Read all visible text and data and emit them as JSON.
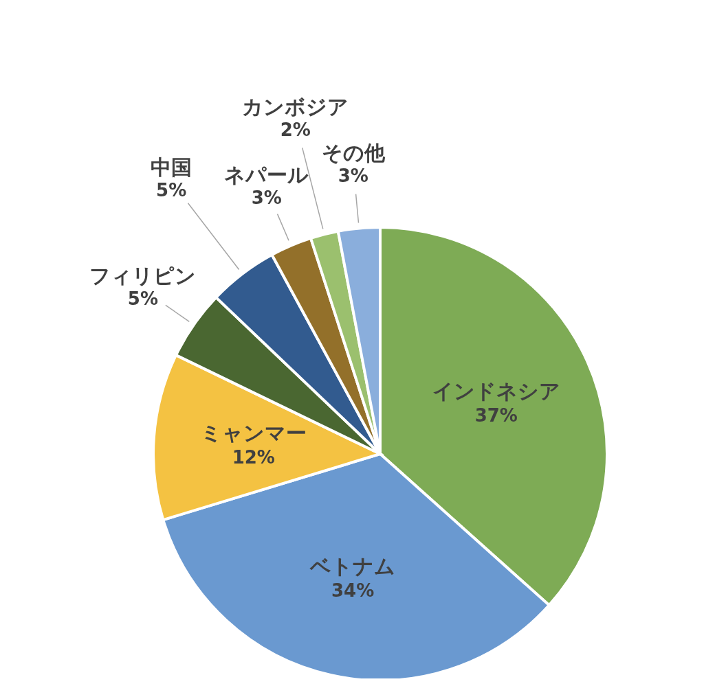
{
  "chart_data": {
    "type": "pie",
    "categories": [
      "インドネシア",
      "ベトナム",
      "ミャンマー",
      "フィリピン",
      "中国",
      "ネパール",
      "カンボジア",
      "その他"
    ],
    "values": [
      37,
      34,
      12,
      5,
      5,
      3,
      2,
      3
    ],
    "colors": [
      "#7eab55",
      "#6a99d0",
      "#f4c242",
      "#4a6731",
      "#325b8f",
      "#93702a",
      "#9bc06e",
      "#8aaedc"
    ],
    "value_labels": [
      "37%",
      "34%",
      "12%",
      "5%",
      "5%",
      "3%",
      "2%",
      "3%"
    ]
  }
}
